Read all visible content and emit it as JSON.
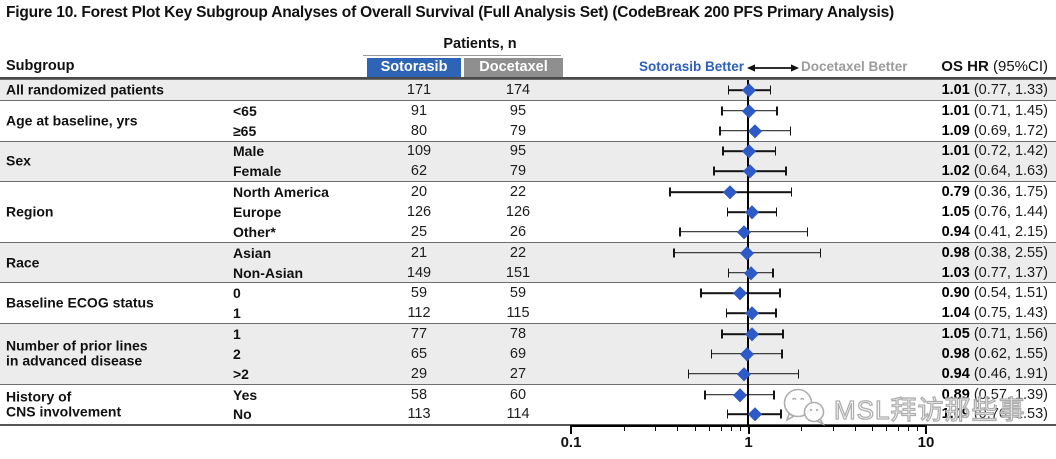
{
  "title": "Figure 10.  Forest Plot Key Subgroup Analyses of Overall Survival (Full Analysis Set) (CodeBreaK 200 PFS Primary Analysis)",
  "table": {
    "patients_n_label": "Patients, n",
    "subgroup_label": "Subgroup",
    "arm1": "Sotorasib",
    "arm2": "Docetaxel",
    "better_left": "Sotorasib Better",
    "better_right": "Docetaxel Better",
    "hr_header_bold": "OS HR",
    "hr_header_normal": " (95%CI)"
  },
  "colors": {
    "sotorasib_blue": "#2E64B5",
    "docetaxel_gray": "#8F8F8F",
    "better_blue": "#2D5FC0",
    "better_gray": "#9B9B9B",
    "diamond_blue": "#2D5AC7",
    "row_shade": "#ECECEC"
  },
  "axis": {
    "scale": "log",
    "min": 0.1,
    "max": 10,
    "tick_labels": [
      "0.1",
      "1",
      "10"
    ],
    "tick_values": [
      0.1,
      1,
      10
    ]
  },
  "watermark": {
    "icon": "wechat-icon",
    "text": "MSL拜访那些事"
  },
  "chart_data": {
    "type": "forest",
    "x_scale": "log",
    "x_range": [
      0.1,
      10
    ],
    "reference_line": 1,
    "groups": [
      {
        "label": "All randomized patients",
        "shaded": true,
        "rows": [
          {
            "level": "",
            "n1": "171",
            "n2": "174",
            "hr": 1.01,
            "lo": 0.77,
            "hi": 1.33,
            "hr_text": "1.01",
            "ci_text": "(0.77, 1.33)"
          }
        ]
      },
      {
        "label": "Age at baseline, yrs",
        "shaded": false,
        "rows": [
          {
            "level": "<65",
            "n1": "91",
            "n2": "95",
            "hr": 1.01,
            "lo": 0.71,
            "hi": 1.45,
            "hr_text": "1.01",
            "ci_text": "(0.71, 1.45)"
          },
          {
            "level": "≥65",
            "n1": "80",
            "n2": "79",
            "hr": 1.09,
            "lo": 0.69,
            "hi": 1.72,
            "hr_text": "1.09",
            "ci_text": "(0.69, 1.72)"
          }
        ]
      },
      {
        "label": "Sex",
        "shaded": true,
        "rows": [
          {
            "level": "Male",
            "n1": "109",
            "n2": "95",
            "hr": 1.01,
            "lo": 0.72,
            "hi": 1.42,
            "hr_text": "1.01",
            "ci_text": "(0.72, 1.42)"
          },
          {
            "level": "Female",
            "n1": "62",
            "n2": "79",
            "hr": 1.02,
            "lo": 0.64,
            "hi": 1.63,
            "hr_text": "1.02",
            "ci_text": "(0.64, 1.63)"
          }
        ]
      },
      {
        "label": "Region",
        "shaded": false,
        "rows": [
          {
            "level": "North America",
            "n1": "20",
            "n2": "22",
            "hr": 0.79,
            "lo": 0.36,
            "hi": 1.75,
            "hr_text": "0.79",
            "ci_text": "(0.36, 1.75)"
          },
          {
            "level": "Europe",
            "n1": "126",
            "n2": "126",
            "hr": 1.05,
            "lo": 0.76,
            "hi": 1.44,
            "hr_text": "1.05",
            "ci_text": "(0.76, 1.44)"
          },
          {
            "level": "Other*",
            "n1": "25",
            "n2": "26",
            "hr": 0.94,
            "lo": 0.41,
            "hi": 2.15,
            "hr_text": "0.94",
            "ci_text": "(0.41, 2.15)"
          }
        ]
      },
      {
        "label": "Race",
        "shaded": true,
        "rows": [
          {
            "level": "Asian",
            "n1": "21",
            "n2": "22",
            "hr": 0.98,
            "lo": 0.38,
            "hi": 2.55,
            "hr_text": "0.98",
            "ci_text": "(0.38, 2.55)"
          },
          {
            "level": "Non-Asian",
            "n1": "149",
            "n2": "151",
            "hr": 1.03,
            "lo": 0.77,
            "hi": 1.37,
            "hr_text": "1.03",
            "ci_text": "(0.77, 1.37)"
          }
        ]
      },
      {
        "label": "Baseline ECOG status",
        "shaded": false,
        "rows": [
          {
            "level": "0",
            "n1": "59",
            "n2": "59",
            "hr": 0.9,
            "lo": 0.54,
            "hi": 1.51,
            "hr_text": "0.90",
            "ci_text": "(0.54, 1.51)"
          },
          {
            "level": "1",
            "n1": "112",
            "n2": "115",
            "hr": 1.04,
            "lo": 0.75,
            "hi": 1.43,
            "hr_text": "1.04",
            "ci_text": "(0.75, 1.43)"
          }
        ]
      },
      {
        "label": "Number of prior lines\nin advanced disease",
        "shaded": true,
        "rows": [
          {
            "level": "1",
            "n1": "77",
            "n2": "78",
            "hr": 1.05,
            "lo": 0.71,
            "hi": 1.56,
            "hr_text": "1.05",
            "ci_text": "(0.71, 1.56)"
          },
          {
            "level": "2",
            "n1": "65",
            "n2": "69",
            "hr": 0.98,
            "lo": 0.62,
            "hi": 1.55,
            "hr_text": "0.98",
            "ci_text": "(0.62, 1.55)"
          },
          {
            "level": ">2",
            "n1": "29",
            "n2": "27",
            "hr": 0.94,
            "lo": 0.46,
            "hi": 1.91,
            "hr_text": "0.94",
            "ci_text": "(0.46, 1.91)"
          }
        ]
      },
      {
        "label": "History of\nCNS involvement",
        "shaded": false,
        "rows": [
          {
            "level": "Yes",
            "n1": "58",
            "n2": "60",
            "hr": 0.89,
            "lo": 0.57,
            "hi": 1.39,
            "hr_text": "0.89",
            "ci_text": "(0.57, 1.39)"
          },
          {
            "level": "No",
            "n1": "113",
            "n2": "114",
            "hr": 1.09,
            "lo": 0.76,
            "hi": 1.53,
            "hr_text": "1.09",
            "ci_text": "(0.76, 1.53)"
          }
        ]
      }
    ]
  }
}
